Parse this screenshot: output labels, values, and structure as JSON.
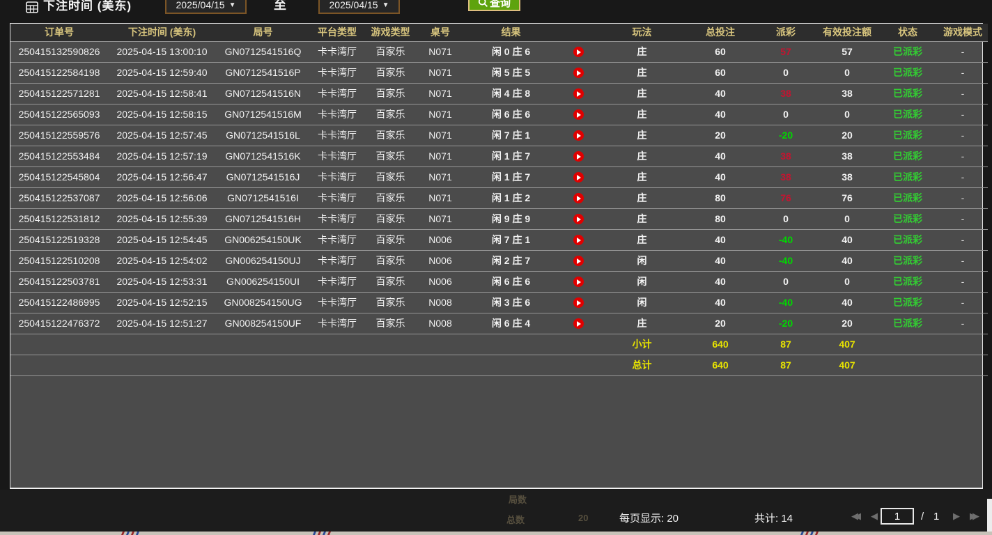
{
  "colors": {
    "win": "#c41430",
    "loss": "#00d800",
    "status_paid": "#33cc33",
    "summary": "#e8e400",
    "header_text": "#d8c57e",
    "button": "#5ea30e",
    "play_icon": "#e00000"
  },
  "filters": {
    "label": "下注时间 (美东)",
    "date_from": "2025/04/15",
    "date_to": "2025/04/15",
    "caret": "▼",
    "to_label": "至",
    "query_label": "查询"
  },
  "table": {
    "headers": {
      "order": "订单号",
      "time": "下注时间 (美东)",
      "round": "局号",
      "platform": "平台类型",
      "game": "游戏类型",
      "table": "桌号",
      "result": "结果",
      "icon": "",
      "play": "玩法",
      "total": "总投注",
      "payout": "派彩",
      "valid": "有效投注额",
      "status": "状态",
      "mode": "游戏模式"
    },
    "rows": [
      {
        "order": "250415132590826",
        "time": "2025-04-15 13:00:10",
        "round": "GN0712541516Q",
        "platform": "卡卡湾厅",
        "game": "百家乐",
        "table": "N071",
        "result": "闲 0 庄 6",
        "play": "庄",
        "total": "60",
        "payout": "57",
        "valid": "57",
        "status": "已派彩",
        "mode": "-"
      },
      {
        "order": "250415122584198",
        "time": "2025-04-15 12:59:40",
        "round": "GN0712541516P",
        "platform": "卡卡湾厅",
        "game": "百家乐",
        "table": "N071",
        "result": "闲 5 庄 5",
        "play": "庄",
        "total": "60",
        "payout": "0",
        "valid": "0",
        "status": "已派彩",
        "mode": "-"
      },
      {
        "order": "250415122571281",
        "time": "2025-04-15 12:58:41",
        "round": "GN0712541516N",
        "platform": "卡卡湾厅",
        "game": "百家乐",
        "table": "N071",
        "result": "闲 4 庄 8",
        "play": "庄",
        "total": "40",
        "payout": "38",
        "valid": "38",
        "status": "已派彩",
        "mode": "-"
      },
      {
        "order": "250415122565093",
        "time": "2025-04-15 12:58:15",
        "round": "GN0712541516M",
        "platform": "卡卡湾厅",
        "game": "百家乐",
        "table": "N071",
        "result": "闲 6 庄 6",
        "play": "庄",
        "total": "40",
        "payout": "0",
        "valid": "0",
        "status": "已派彩",
        "mode": "-"
      },
      {
        "order": "250415122559576",
        "time": "2025-04-15 12:57:45",
        "round": "GN0712541516L",
        "platform": "卡卡湾厅",
        "game": "百家乐",
        "table": "N071",
        "result": "闲 7 庄 1",
        "play": "庄",
        "total": "20",
        "payout": "-20",
        "valid": "20",
        "status": "已派彩",
        "mode": "-"
      },
      {
        "order": "250415122553484",
        "time": "2025-04-15 12:57:19",
        "round": "GN0712541516K",
        "platform": "卡卡湾厅",
        "game": "百家乐",
        "table": "N071",
        "result": "闲 1 庄 7",
        "play": "庄",
        "total": "40",
        "payout": "38",
        "valid": "38",
        "status": "已派彩",
        "mode": "-"
      },
      {
        "order": "250415122545804",
        "time": "2025-04-15 12:56:47",
        "round": "GN0712541516J",
        "platform": "卡卡湾厅",
        "game": "百家乐",
        "table": "N071",
        "result": "闲 1 庄 7",
        "play": "庄",
        "total": "40",
        "payout": "38",
        "valid": "38",
        "status": "已派彩",
        "mode": "-"
      },
      {
        "order": "250415122537087",
        "time": "2025-04-15 12:56:06",
        "round": "GN0712541516I",
        "platform": "卡卡湾厅",
        "game": "百家乐",
        "table": "N071",
        "result": "闲 1 庄 2",
        "play": "庄",
        "total": "80",
        "payout": "76",
        "valid": "76",
        "status": "已派彩",
        "mode": "-"
      },
      {
        "order": "250415122531812",
        "time": "2025-04-15 12:55:39",
        "round": "GN0712541516H",
        "platform": "卡卡湾厅",
        "game": "百家乐",
        "table": "N071",
        "result": "闲 9 庄 9",
        "play": "庄",
        "total": "80",
        "payout": "0",
        "valid": "0",
        "status": "已派彩",
        "mode": "-"
      },
      {
        "order": "250415122519328",
        "time": "2025-04-15 12:54:45",
        "round": "GN006254150UK",
        "platform": "卡卡湾厅",
        "game": "百家乐",
        "table": "N006",
        "result": "闲 7 庄 1",
        "play": "庄",
        "total": "40",
        "payout": "-40",
        "valid": "40",
        "status": "已派彩",
        "mode": "-"
      },
      {
        "order": "250415122510208",
        "time": "2025-04-15 12:54:02",
        "round": "GN006254150UJ",
        "platform": "卡卡湾厅",
        "game": "百家乐",
        "table": "N006",
        "result": "闲 2 庄 7",
        "play": "闲",
        "total": "40",
        "payout": "-40",
        "valid": "40",
        "status": "已派彩",
        "mode": "-"
      },
      {
        "order": "250415122503781",
        "time": "2025-04-15 12:53:31",
        "round": "GN006254150UI",
        "platform": "卡卡湾厅",
        "game": "百家乐",
        "table": "N006",
        "result": "闲 6 庄 6",
        "play": "闲",
        "total": "40",
        "payout": "0",
        "valid": "0",
        "status": "已派彩",
        "mode": "-"
      },
      {
        "order": "250415122486995",
        "time": "2025-04-15 12:52:15",
        "round": "GN008254150UG",
        "platform": "卡卡湾厅",
        "game": "百家乐",
        "table": "N008",
        "result": "闲 3 庄 6",
        "play": "闲",
        "total": "40",
        "payout": "-40",
        "valid": "40",
        "status": "已派彩",
        "mode": "-"
      },
      {
        "order": "250415122476372",
        "time": "2025-04-15 12:51:27",
        "round": "GN008254150UF",
        "platform": "卡卡湾厅",
        "game": "百家乐",
        "table": "N008",
        "result": "闲 6 庄 4",
        "play": "庄",
        "total": "20",
        "payout": "-20",
        "valid": "20",
        "status": "已派彩",
        "mode": "-"
      }
    ],
    "subtotal": {
      "label": "小计",
      "total": "640",
      "payout": "87",
      "valid": "407"
    },
    "total": {
      "label": "总计",
      "total": "640",
      "payout": "87",
      "valid": "407"
    }
  },
  "pagination": {
    "per_page": "每页显示: 20",
    "total_count": "共计: 14",
    "page_input": "1",
    "separator": "/",
    "page_total": "1",
    "first_icon": "◀◀",
    "prev_icon": "◀",
    "next_icon": "▶",
    "last_icon": "▶▶"
  },
  "background_bleed": {
    "faint_label_1": "局数",
    "faint_label_2": "总数",
    "faint_value": "20"
  }
}
